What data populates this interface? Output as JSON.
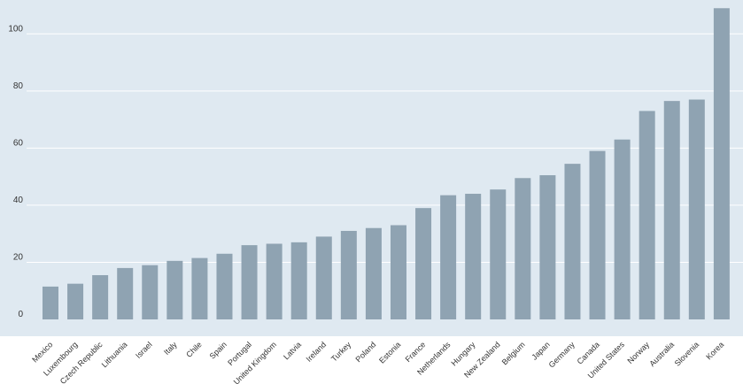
{
  "chart_data": {
    "type": "bar",
    "categories": [
      "Mexico",
      "Luxembourg",
      "Czech Republic",
      "Lithuania",
      "Israel",
      "Italy",
      "Chile",
      "Spain",
      "Portugal",
      "United Kingdom",
      "Latvia",
      "Ireland",
      "Turkey",
      "Poland",
      "Estonia",
      "France",
      "Netherlands",
      "Hungary",
      "New Zealand",
      "Belgium",
      "Japan",
      "Germany",
      "Canada",
      "United States",
      "Norway",
      "Australia",
      "Slovenia",
      "Korea"
    ],
    "values": [
      11.5,
      12.5,
      15.5,
      18,
      19,
      20.5,
      21.5,
      23,
      26,
      26.5,
      27,
      29,
      31,
      32,
      33,
      39,
      43.5,
      44,
      45.5,
      49.5,
      50.5,
      54.5,
      59,
      63,
      73,
      76.5,
      77,
      109
    ],
    "title": "",
    "xlabel": "",
    "ylabel": "",
    "yticks": [
      0,
      20,
      40,
      60,
      80,
      100
    ],
    "ylim": [
      0,
      110
    ],
    "grid": true,
    "colors": {
      "plot_background": "#dfe9f1",
      "bar": "#8fa3b2",
      "gridline": "#ffffff"
    }
  }
}
